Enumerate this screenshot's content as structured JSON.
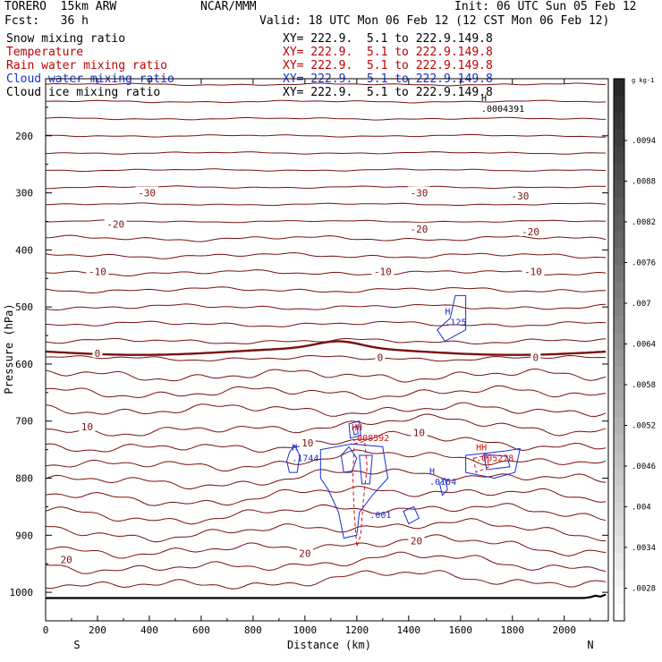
{
  "header": {
    "model": "TORERO  15km ARW",
    "org": "NCAR/MMM",
    "init": "Init: 06 UTC Sun 05 Feb 12",
    "fcst": "Fcst:   36 h",
    "valid": "Valid: 18 UTC Mon 06 Feb 12 (12 CST Mon 06 Feb 12)"
  },
  "fields": [
    {
      "name": "Snow mixing ratio",
      "xy": "XY= 222.9.  5.1 to 222.9.149.8",
      "color": "#000000"
    },
    {
      "name": "Temperature",
      "xy": "XY= 222.9.  5.1 to 222.9.149.8",
      "color": "#c00000"
    },
    {
      "name": "Rain water mixing ratio",
      "xy": "XY= 222.9.  5.1 to 222.9.149.8",
      "color": "#c00000"
    },
    {
      "name": "Cloud water mixing ratio",
      "xy": "XY= 222.9.  5.1 to 222.9.149.8",
      "color": "#1a2fd0"
    },
    {
      "name": "Cloud ice mixing ratio",
      "xy": "XY= 222.9.  5.1 to 222.9.149.8",
      "color": "#000000"
    }
  ],
  "colorbar": {
    "unit": "g kg-1",
    "labels": [
      ".0094",
      ".0088",
      ".0082",
      ".0076",
      ".007",
      ".0064",
      ".0058",
      ".0052",
      ".0046",
      ".004",
      ".0034",
      ".0028"
    ]
  },
  "chart_data": {
    "type": "line",
    "title": "",
    "xlabel": "Distance (km)",
    "ylabel": "Pressure (hPa)",
    "xlim": [
      0,
      2170
    ],
    "ylim": [
      1050,
      100
    ],
    "x_ticks": [
      0,
      200,
      400,
      600,
      800,
      1000,
      1200,
      1400,
      1600,
      1800,
      2000
    ],
    "y_ticks": [
      200,
      300,
      400,
      500,
      600,
      700,
      800,
      900,
      1000
    ],
    "x_end_labels": {
      "left": "S",
      "right": "N"
    },
    "temperature_labels": [
      {
        "text": "-30",
        "x": 390,
        "p": 300
      },
      {
        "text": "-30",
        "x": 1440,
        "p": 300
      },
      {
        "text": "-30",
        "x": 1830,
        "p": 305
      },
      {
        "text": "-20",
        "x": 270,
        "p": 355
      },
      {
        "text": "-20",
        "x": 1440,
        "p": 363
      },
      {
        "text": "-20",
        "x": 1870,
        "p": 368
      },
      {
        "text": "-10",
        "x": 200,
        "p": 438
      },
      {
        "text": "-10",
        "x": 1300,
        "p": 438
      },
      {
        "text": "-10",
        "x": 1880,
        "p": 438
      },
      {
        "text": "0",
        "x": 200,
        "p": 581
      },
      {
        "text": "0",
        "x": 1290,
        "p": 588
      },
      {
        "text": "0",
        "x": 1890,
        "p": 588
      },
      {
        "text": "10",
        "x": 160,
        "p": 710
      },
      {
        "text": "10",
        "x": 1010,
        "p": 738
      },
      {
        "text": "10",
        "x": 1440,
        "p": 720
      },
      {
        "text": "20",
        "x": 80,
        "p": 943
      },
      {
        "text": "20",
        "x": 1000,
        "p": 932
      },
      {
        "text": "20",
        "x": 1430,
        "p": 910
      }
    ],
    "extrema_labels": [
      {
        "field": "Snow mixing ratio",
        "mark": "H",
        "value": ".0004391",
        "x": 1680,
        "p": 158
      },
      {
        "field": "Cloud water mixing ratio",
        "mark": "H",
        "value": ".125",
        "x": 1540,
        "p": 532
      },
      {
        "field": "Cloud water mixing ratio",
        "mark": "H",
        "value": ".1744",
        "x": 950,
        "p": 770
      },
      {
        "field": "Cloud water mixing ratio",
        "mark": "H",
        "value": ".0164",
        "x": 1480,
        "p": 812
      },
      {
        "field": "Cloud water mixing ratio",
        "mark": "",
        "value": ".001",
        "x": 1250,
        "p": 870
      },
      {
        "field": "Rain water mixing ratio",
        "mark": "HH",
        "value": ".008592",
        "x": 1180,
        "p": 735
      },
      {
        "field": "Rain water mixing ratio",
        "mark": "HH",
        "value": ".005278",
        "x": 1660,
        "p": 770
      }
    ],
    "series": [
      {
        "name": "Temperature",
        "color": "#7a1010"
      },
      {
        "name": "Cloud water mixing ratio",
        "color": "#1a2fd0"
      },
      {
        "name": "Rain water mixing ratio",
        "color": "#d01010"
      }
    ]
  }
}
